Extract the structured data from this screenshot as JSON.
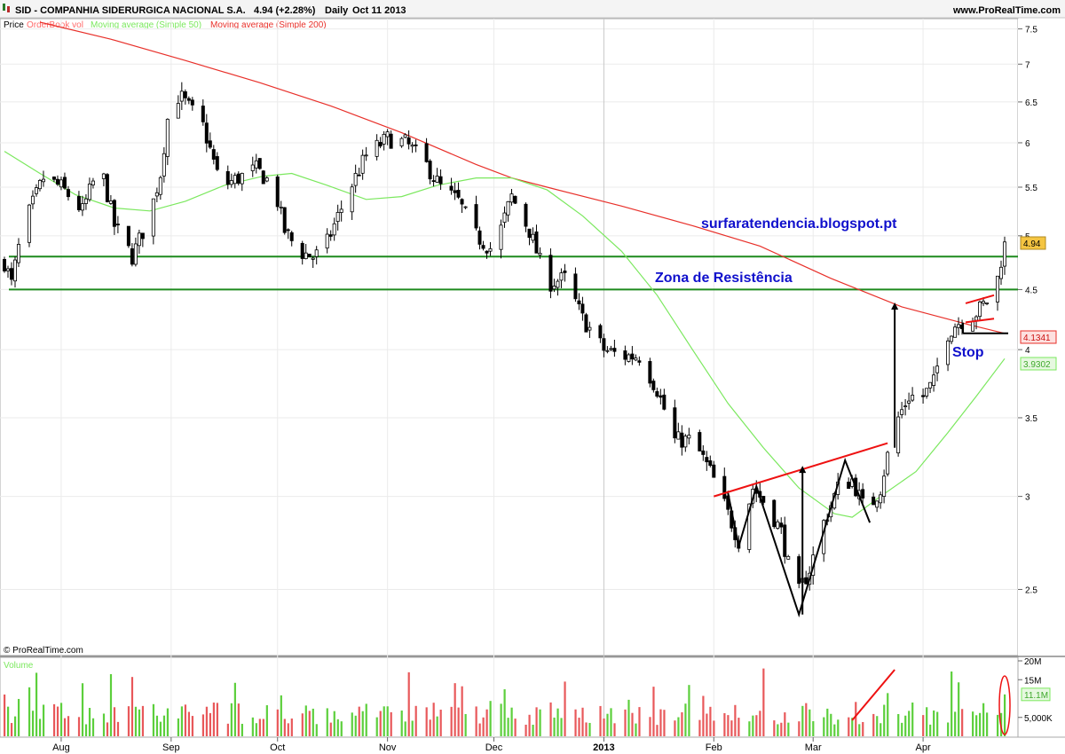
{
  "header": {
    "ticker_title": "SID - COMPANHIA SIDERURGICA NACIONAL S.A.",
    "price_change": "4.94 (+2.28%)",
    "period": "Daily",
    "date": "Oct 11 2013",
    "website": "www.ProRealTime.com"
  },
  "legend": {
    "price": "Price",
    "orderbook": "OrderBook vol",
    "ma50": "Moving average (Simple 50)",
    "ma200": "Moving average (Simple 200)"
  },
  "copyright": "© ProRealTime.com",
  "volume_label": "Volume",
  "annotations": {
    "blog": "surfaratendencia.blogspot.pt",
    "resistance_zone": "Zona de Resistência",
    "stop": "Stop"
  },
  "price_tags": {
    "last": "4.94",
    "ma200": "4.1341",
    "ma50": "3.9302"
  },
  "colors": {
    "bull": "#ffffff",
    "bear": "#000000",
    "ma50": "#7be85e",
    "ma200": "#e8302a",
    "resistance": "#1d8a1d",
    "annotation_blue": "#1010cc",
    "trendline": "#ee1111",
    "vol_up": "#5ccf3c",
    "vol_down": "#e8585a"
  },
  "chart_data": {
    "type": "candlestick",
    "y_scale": "log",
    "ylim": [
      2.2,
      7.6
    ],
    "y_ticks": [
      2.5,
      3,
      3.5,
      4,
      4.5,
      5,
      5.5,
      6,
      6.5,
      7,
      7.5
    ],
    "x_ticks": [
      "Aug",
      "Sep",
      "Oct",
      "Nov",
      "Dec",
      "2013",
      "Feb",
      "Mar",
      "Apr"
    ],
    "x_tick_dates": [
      "2012-08-01",
      "2012-09-01",
      "2012-10-01",
      "2012-11-01",
      "2012-12-01",
      "2013-01-01",
      "2013-02-01",
      "2013-03-01",
      "2013-04-01"
    ],
    "x_range": [
      "2012-07-16",
      "2013-04-26"
    ],
    "price_path": [
      [
        "2012-07-16",
        4.75
      ],
      [
        "2012-07-18",
        4.55
      ],
      [
        "2012-07-21",
        5.05
      ],
      [
        "2012-07-27",
        5.6
      ],
      [
        "2012-08-01",
        5.5
      ],
      [
        "2012-08-07",
        5.25
      ],
      [
        "2012-08-12",
        5.75
      ],
      [
        "2012-08-16",
        5.1
      ],
      [
        "2012-08-21",
        4.8
      ],
      [
        "2012-08-26",
        5.2
      ],
      [
        "2012-08-29",
        5.65
      ],
      [
        "2012-09-01",
        6.6
      ],
      [
        "2012-09-04",
        6.55
      ],
      [
        "2012-09-10",
        6.2
      ],
      [
        "2012-09-15",
        5.5
      ],
      [
        "2012-09-20",
        5.6
      ],
      [
        "2012-09-25",
        5.7
      ],
      [
        "2012-09-30",
        5.5
      ],
      [
        "2012-10-03",
        5.05
      ],
      [
        "2012-10-07",
        4.85
      ],
      [
        "2012-10-11",
        4.8
      ],
      [
        "2012-10-14",
        4.85
      ],
      [
        "2012-10-21",
        5.45
      ],
      [
        "2012-10-26",
        5.85
      ],
      [
        "2012-11-01",
        6.05
      ],
      [
        "2012-11-06",
        6.0
      ],
      [
        "2012-11-11",
        5.8
      ],
      [
        "2012-11-16",
        5.5
      ],
      [
        "2012-11-21",
        5.35
      ],
      [
        "2012-11-26",
        5.0
      ],
      [
        "2012-12-01",
        4.85
      ],
      [
        "2012-12-06",
        5.4
      ],
      [
        "2012-12-11",
        5.05
      ],
      [
        "2012-12-16",
        4.55
      ],
      [
        "2012-12-21",
        4.6
      ],
      [
        "2012-12-26",
        4.25
      ],
      [
        "2013-01-01",
        4.0
      ],
      [
        "2013-01-06",
        3.95
      ],
      [
        "2013-01-11",
        3.95
      ],
      [
        "2013-01-16",
        3.7
      ],
      [
        "2013-01-21",
        3.35
      ],
      [
        "2013-01-26",
        3.35
      ],
      [
        "2013-01-31",
        3.15
      ],
      [
        "2013-02-04",
        2.95
      ],
      [
        "2013-02-08",
        2.75
      ],
      [
        "2013-02-12",
        3.05
      ],
      [
        "2013-02-16",
        2.95
      ],
      [
        "2013-02-20",
        2.8
      ],
      [
        "2013-02-24",
        2.45
      ],
      [
        "2013-02-28",
        2.6
      ],
      [
        "2013-03-04",
        2.85
      ],
      [
        "2013-03-08",
        3.05
      ],
      [
        "2013-03-12",
        3.1
      ],
      [
        "2013-03-16",
        2.9
      ],
      [
        "2013-03-20",
        3.05
      ],
      [
        "2013-03-24",
        3.45
      ],
      [
        "2013-03-28",
        3.65
      ],
      [
        "2013-04-01",
        3.65
      ],
      [
        "2013-04-04",
        3.75
      ],
      [
        "2013-04-07",
        4.1
      ],
      [
        "2013-04-10",
        4.2
      ],
      [
        "2013-04-13",
        4.25
      ],
      [
        "2013-04-16",
        4.3
      ],
      [
        "2013-04-19",
        4.4
      ],
      [
        "2013-04-22",
        4.6
      ],
      [
        "2013-04-24",
        4.94
      ]
    ],
    "ma50": [
      [
        "2012-07-16",
        5.9
      ],
      [
        "2012-07-26",
        5.65
      ],
      [
        "2012-08-05",
        5.42
      ],
      [
        "2012-08-16",
        5.28
      ],
      [
        "2012-08-26",
        5.25
      ],
      [
        "2012-09-05",
        5.35
      ],
      [
        "2012-09-16",
        5.52
      ],
      [
        "2012-09-27",
        5.62
      ],
      [
        "2012-10-05",
        5.65
      ],
      [
        "2012-10-15",
        5.52
      ],
      [
        "2012-10-26",
        5.37
      ],
      [
        "2012-11-05",
        5.4
      ],
      [
        "2012-11-15",
        5.52
      ],
      [
        "2012-11-26",
        5.6
      ],
      [
        "2012-12-06",
        5.6
      ],
      [
        "2012-12-16",
        5.47
      ],
      [
        "2012-12-26",
        5.2
      ],
      [
        "2013-01-06",
        4.85
      ],
      [
        "2013-01-16",
        4.45
      ],
      [
        "2013-01-26",
        4.0
      ],
      [
        "2013-02-05",
        3.6
      ],
      [
        "2013-02-15",
        3.3
      ],
      [
        "2013-02-25",
        3.05
      ],
      [
        "2013-03-07",
        2.9
      ],
      [
        "2013-03-12",
        2.88
      ],
      [
        "2013-03-20",
        3.0
      ],
      [
        "2013-03-30",
        3.15
      ],
      [
        "2013-04-08",
        3.4
      ],
      [
        "2013-04-16",
        3.65
      ],
      [
        "2013-04-24",
        3.93
      ]
    ],
    "ma200": [
      [
        "2012-07-26",
        7.6
      ],
      [
        "2012-08-15",
        7.35
      ],
      [
        "2012-09-05",
        7.05
      ],
      [
        "2012-09-26",
        6.75
      ],
      [
        "2012-10-16",
        6.45
      ],
      [
        "2012-11-05",
        6.12
      ],
      [
        "2012-11-26",
        5.75
      ],
      [
        "2012-12-06",
        5.6
      ],
      [
        "2012-12-16",
        5.5
      ],
      [
        "2013-01-06",
        5.3
      ],
      [
        "2013-01-26",
        5.1
      ],
      [
        "2013-02-14",
        4.9
      ],
      [
        "2013-03-06",
        4.6
      ],
      [
        "2013-03-26",
        4.35
      ],
      [
        "2013-04-14",
        4.2
      ],
      [
        "2013-04-24",
        4.13
      ]
    ],
    "resistance_levels": [
      4.8,
      4.5
    ],
    "last_price": 4.94,
    "ma200_last": 4.1341,
    "ma50_last": 3.9302,
    "pattern_lines": {
      "neckline": [
        [
          "2013-02-01",
          3.0
        ],
        [
          "2013-03-22",
          3.33
        ]
      ],
      "w_pattern": [
        [
          "2013-02-05",
          3.02
        ],
        [
          "2013-02-08",
          2.72
        ],
        [
          "2013-02-13",
          3.06
        ],
        [
          "2013-02-25",
          2.38
        ],
        [
          "2013-03-10",
          3.22
        ],
        [
          "2013-03-17",
          2.85
        ]
      ],
      "flag_top": [
        [
          "2013-04-13",
          4.38
        ],
        [
          "2013-04-21",
          4.45
        ]
      ],
      "flag_bottom": [
        [
          "2013-04-13",
          4.22
        ],
        [
          "2013-04-21",
          4.25
        ]
      ],
      "stop_level": 4.13,
      "arrow_1": [
        [
          "2013-02-26",
          2.38
        ],
        [
          "2013-02-26",
          3.18
        ]
      ],
      "arrow_2": [
        [
          "2013-03-24",
          3.3
        ],
        [
          "2013-03-24",
          4.38
        ]
      ]
    },
    "volume": {
      "y_ticks": [
        "20M",
        "15M",
        "11.1M",
        "5,000K"
      ],
      "y_tick_values": [
        20,
        15,
        11.1,
        5
      ],
      "max": 20,
      "last": 11.1
    }
  }
}
